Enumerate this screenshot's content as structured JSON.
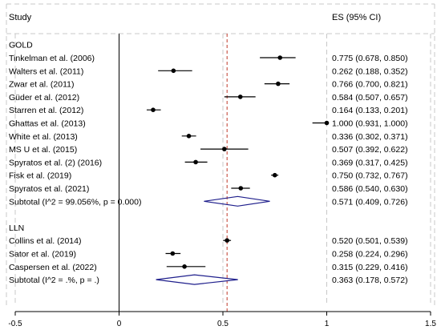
{
  "chart_data": {
    "type": "forest",
    "header": {
      "study": "Study",
      "es": "ES (95% CI)"
    },
    "xlim": [
      -0.5,
      1.5
    ],
    "ticks": [
      {
        "v": -0.5,
        "label": "-0.5"
      },
      {
        "v": 0,
        "label": "0"
      },
      {
        "v": 0.5,
        "label": "0.5"
      },
      {
        "v": 1,
        "label": "1"
      },
      {
        "v": 1.5,
        "label": "1.5"
      }
    ],
    "null_line": 0,
    "pooled_line": 0.52,
    "groups": [
      {
        "name": "GOLD",
        "studies": [
          {
            "label": "Tinkelman et al. (2006)",
            "es": 0.775,
            "lo": 0.678,
            "hi": 0.85,
            "text": "0.775 (0.678, 0.850)"
          },
          {
            "label": "Walters et al. (2011)",
            "es": 0.262,
            "lo": 0.188,
            "hi": 0.352,
            "text": "0.262 (0.188, 0.352)"
          },
          {
            "label": "Zwar et al. (2011)",
            "es": 0.766,
            "lo": 0.7,
            "hi": 0.821,
            "text": "0.766 (0.700, 0.821)"
          },
          {
            "label": "Güder et al. (2012)",
            "es": 0.584,
            "lo": 0.507,
            "hi": 0.657,
            "text": "0.584 (0.507, 0.657)"
          },
          {
            "label": "Starren et al. (2012)",
            "es": 0.164,
            "lo": 0.133,
            "hi": 0.201,
            "text": "0.164 (0.133, 0.201)"
          },
          {
            "label": "Ghattas et al. (2013)",
            "es": 1.0,
            "lo": 0.931,
            "hi": 1.0,
            "text": "1.000 (0.931, 1.000)"
          },
          {
            "label": "White et al. (2013)",
            "es": 0.336,
            "lo": 0.302,
            "hi": 0.371,
            "text": "0.336 (0.302, 0.371)"
          },
          {
            "label": "MS U et al. (2015)",
            "es": 0.507,
            "lo": 0.392,
            "hi": 0.622,
            "text": "0.507 (0.392, 0.622)"
          },
          {
            "label": "Spyratos et al. (2) (2016)",
            "es": 0.369,
            "lo": 0.317,
            "hi": 0.425,
            "text": "0.369 (0.317, 0.425)"
          },
          {
            "label": "Fisk et al. (2019)",
            "es": 0.75,
            "lo": 0.732,
            "hi": 0.767,
            "text": "0.750 (0.732, 0.767)"
          },
          {
            "label": "Spyratos et al. (2021)",
            "es": 0.586,
            "lo": 0.54,
            "hi": 0.63,
            "text": "0.586 (0.540, 0.630)"
          }
        ],
        "subtotal": {
          "label": "Subtotal  (I^2 = 99.056%, p = 0.000)",
          "es": 0.571,
          "lo": 0.409,
          "hi": 0.726,
          "text": "0.571 (0.409, 0.726)"
        }
      },
      {
        "name": "LLN",
        "studies": [
          {
            "label": "Collins et al. (2014)",
            "es": 0.52,
            "lo": 0.501,
            "hi": 0.539,
            "text": "0.520 (0.501, 0.539)"
          },
          {
            "label": "Sator et al. (2019)",
            "es": 0.258,
            "lo": 0.224,
            "hi": 0.296,
            "text": "0.258 (0.224, 0.296)"
          },
          {
            "label": "Caspersen et al. (2022)",
            "es": 0.315,
            "lo": 0.229,
            "hi": 0.416,
            "text": "0.315 (0.229, 0.416)"
          }
        ],
        "subtotal": {
          "label": "Subtotal  (I^2 = .%, p = .)",
          "es": 0.363,
          "lo": 0.178,
          "hi": 0.572,
          "text": "0.363 (0.178, 0.572)"
        }
      }
    ],
    "colors": {
      "marker": "#000000",
      "diamond": "#1f1f8c",
      "pooled_line": "#c0392b",
      "grid": "#c8c8c8",
      "axis": "#000000"
    }
  }
}
